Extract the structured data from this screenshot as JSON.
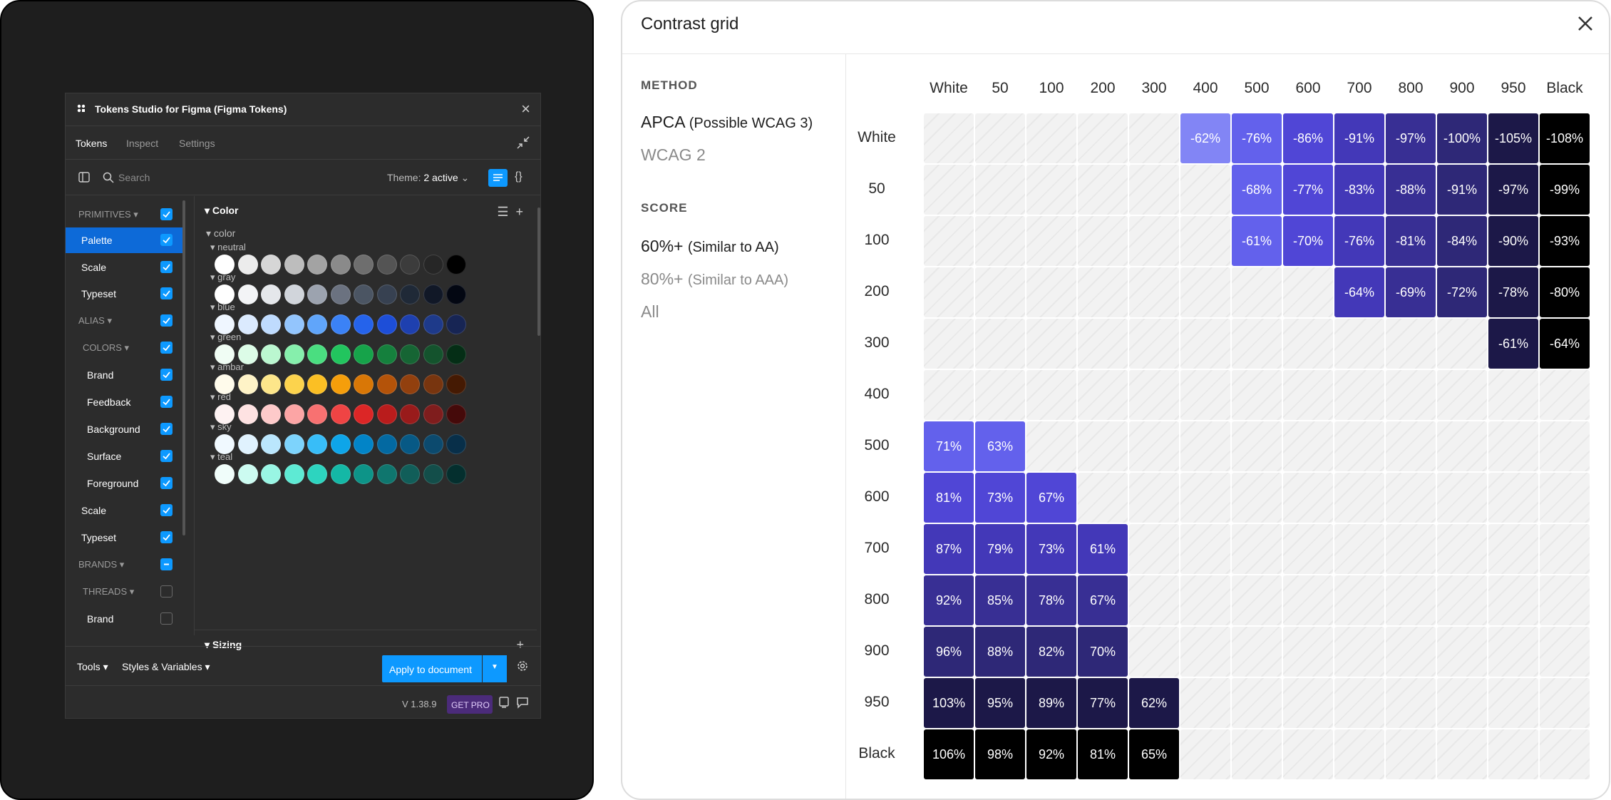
{
  "plugin": {
    "title": "Tokens Studio for Figma (Figma Tokens)",
    "tabs": [
      "Tokens",
      "Inspect",
      "Settings"
    ],
    "search_placeholder": "Search",
    "theme_label": "Theme:",
    "theme_value": "2 active",
    "sidebar": [
      {
        "label": "PRIMITIVES ▾",
        "group": true,
        "indent": 1,
        "checked": true
      },
      {
        "label": "Palette",
        "group": false,
        "indent": 2,
        "checked": true,
        "selected": true
      },
      {
        "label": "Scale",
        "group": false,
        "indent": 2,
        "checked": true
      },
      {
        "label": "Typeset",
        "group": false,
        "indent": 2,
        "checked": true
      },
      {
        "label": "ALIAS ▾",
        "group": true,
        "indent": 1,
        "checked": true
      },
      {
        "label": "COLORS ▾",
        "group": true,
        "indent": 2,
        "checked": true
      },
      {
        "label": "Brand",
        "group": false,
        "indent": 3,
        "checked": true
      },
      {
        "label": "Feedback",
        "group": false,
        "indent": 3,
        "checked": true
      },
      {
        "label": "Background",
        "group": false,
        "indent": 3,
        "checked": true
      },
      {
        "label": "Surface",
        "group": false,
        "indent": 3,
        "checked": true
      },
      {
        "label": "Foreground",
        "group": false,
        "indent": 3,
        "checked": true
      },
      {
        "label": "Scale",
        "group": false,
        "indent": 2,
        "checked": true
      },
      {
        "label": "Typeset",
        "group": false,
        "indent": 2,
        "checked": true
      },
      {
        "label": "BRANDS ▾",
        "group": true,
        "indent": 1,
        "checked": "partial"
      },
      {
        "label": "THREADS ▾",
        "group": true,
        "indent": 2,
        "checked": false
      },
      {
        "label": "Brand",
        "group": false,
        "indent": 3,
        "checked": false
      }
    ],
    "main_heading": "Color",
    "sub_heading": "color",
    "palettes": [
      {
        "name": "neutral",
        "colors": [
          "#ffffff",
          "#ececec",
          "#d6d6d6",
          "#bdbdbd",
          "#a3a3a3",
          "#8a8a8a",
          "#6e6e6e",
          "#545454",
          "#3c3c3c",
          "#262626",
          "#000000"
        ]
      },
      {
        "name": "gray",
        "colors": [
          "#ffffff",
          "#f3f4f6",
          "#e5e7eb",
          "#d1d5db",
          "#9ca3af",
          "#6b7280",
          "#4b5563",
          "#374151",
          "#1f2937",
          "#111827",
          "#030712"
        ]
      },
      {
        "name": "blue",
        "colors": [
          "#eff6ff",
          "#dbeafe",
          "#bfdbfe",
          "#93c5fd",
          "#60a5fa",
          "#3b82f6",
          "#2563eb",
          "#1d4ed8",
          "#1e40af",
          "#1e3a8a",
          "#172554"
        ]
      },
      {
        "name": "green",
        "colors": [
          "#f0fdf4",
          "#dcfce7",
          "#bbf7d0",
          "#86efac",
          "#4ade80",
          "#22c55e",
          "#16a34a",
          "#15803d",
          "#166534",
          "#14532d",
          "#052e16"
        ]
      },
      {
        "name": "ambar",
        "colors": [
          "#fffbeb",
          "#fef3c7",
          "#fde68a",
          "#fcd34d",
          "#fbbf24",
          "#f59e0b",
          "#d97706",
          "#b45309",
          "#92400e",
          "#78350f",
          "#451a03"
        ]
      },
      {
        "name": "red",
        "colors": [
          "#fef2f2",
          "#fee2e2",
          "#fecaca",
          "#fca5a5",
          "#f87171",
          "#ef4444",
          "#dc2626",
          "#b91c1c",
          "#991b1b",
          "#7f1d1d",
          "#450a0a"
        ]
      },
      {
        "name": "sky",
        "colors": [
          "#f0f9ff",
          "#e0f2fe",
          "#bae6fd",
          "#7dd3fc",
          "#38bdf8",
          "#0ea5e9",
          "#0284c7",
          "#0369a1",
          "#075985",
          "#0c4a6e",
          "#082f49"
        ]
      },
      {
        "name": "teal",
        "colors": [
          "#f0fdfa",
          "#ccfbf1",
          "#99f6e4",
          "#5eead4",
          "#2dd4bf",
          "#14b8a6",
          "#0d9488",
          "#0f766e",
          "#115e59",
          "#134e4a",
          "#042f2e"
        ]
      }
    ],
    "sizing_heading": "Sizing",
    "footer": {
      "tools": "Tools ▾",
      "styles": "Styles & Variables ▾",
      "apply": "Apply to document"
    },
    "version": "V 1.38.9",
    "get_pro": "GET PRO"
  },
  "contrast": {
    "title": "Contrast grid",
    "method_label": "METHOD",
    "methods": [
      {
        "main": "APCA",
        "sub": "(Possible WCAG 3)",
        "active": true
      },
      {
        "main": "WCAG 2",
        "sub": "",
        "active": false
      }
    ],
    "score_label": "SCORE",
    "scores": [
      {
        "main": "60%+",
        "sub": "(Similar to AA)",
        "active": true
      },
      {
        "main": "80%+",
        "sub": "(Similar to AAA)",
        "active": false
      },
      {
        "main": "All",
        "sub": "",
        "active": false
      }
    ],
    "columns": [
      "White",
      "50",
      "100",
      "200",
      "300",
      "400",
      "500",
      "600",
      "700",
      "800",
      "900",
      "950",
      "Black"
    ],
    "rows": [
      "White",
      "50",
      "100",
      "200",
      "300",
      "400",
      "500",
      "600",
      "700",
      "800",
      "900",
      "950",
      "Black"
    ],
    "cells": [
      [
        "",
        "",
        "",
        "",
        "",
        "-62%",
        "-76%",
        "-86%",
        "-91%",
        "-97%",
        "-100%",
        "-105%",
        "-108%"
      ],
      [
        "",
        "",
        "",
        "",
        "",
        "",
        "-68%",
        "-77%",
        "-83%",
        "-88%",
        "-91%",
        "-97%",
        "-99%"
      ],
      [
        "",
        "",
        "",
        "",
        "",
        "",
        "-61%",
        "-70%",
        "-76%",
        "-81%",
        "-84%",
        "-90%",
        "-93%"
      ],
      [
        "",
        "",
        "",
        "",
        "",
        "",
        "",
        "",
        "-64%",
        "-69%",
        "-72%",
        "-78%",
        "-80%"
      ],
      [
        "",
        "",
        "",
        "",
        "",
        "",
        "",
        "",
        "",
        "",
        "",
        "-61%",
        "-64%"
      ],
      [
        "",
        "",
        "",
        "",
        "",
        "",
        "",
        "",
        "",
        "",
        "",
        "",
        ""
      ],
      [
        "71%",
        "63%",
        "",
        "",
        "",
        "",
        "",
        "",
        "",
        "",
        "",
        "",
        ""
      ],
      [
        "81%",
        "73%",
        "67%",
        "",
        "",
        "",
        "",
        "",
        "",
        "",
        "",
        "",
        ""
      ],
      [
        "87%",
        "79%",
        "73%",
        "61%",
        "",
        "",
        "",
        "",
        "",
        "",
        "",
        "",
        ""
      ],
      [
        "92%",
        "85%",
        "78%",
        "67%",
        "",
        "",
        "",
        "",
        "",
        "",
        "",
        "",
        ""
      ],
      [
        "96%",
        "88%",
        "82%",
        "70%",
        "",
        "",
        "",
        "",
        "",
        "",
        "",
        "",
        ""
      ],
      [
        "103%",
        "95%",
        "89%",
        "77%",
        "62%",
        "",
        "",
        "",
        "",
        "",
        "",
        "",
        ""
      ],
      [
        "106%",
        "98%",
        "92%",
        "81%",
        "65%",
        "",
        "",
        "",
        "",
        "",
        "",
        "",
        ""
      ]
    ],
    "col_swatches": [
      "#ffffff",
      "#eef0ff",
      "#dde1ff",
      "#c3c8ff",
      "#a3a6fb",
      "#8285f5",
      "#6361ec",
      "#5046d6",
      "#4338b8",
      "#382f94",
      "#2e2877",
      "#1c1848",
      "#000000"
    ]
  }
}
